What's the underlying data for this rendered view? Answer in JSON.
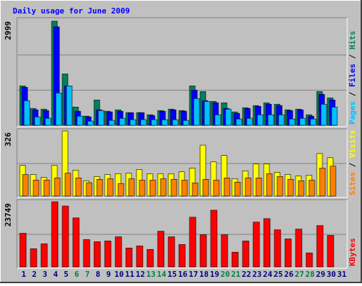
{
  "chart_data": [
    {
      "type": "bar",
      "title": "Daily usage for June 2009",
      "ylim": [
        0,
        2999
      ],
      "yticks": [
        2999
      ],
      "legend_separator": " / ",
      "series": [
        {
          "name": "Hits",
          "color": "#00805c",
          "values": [
            1120,
            480,
            460,
            2960,
            1460,
            520,
            260,
            720,
            400,
            440,
            360,
            360,
            300,
            420,
            460,
            420,
            1120,
            960,
            680,
            640,
            380,
            500,
            560,
            640,
            600,
            440,
            460,
            300,
            960,
            780,
            null
          ]
        },
        {
          "name": "Files",
          "color": "#0000ff",
          "values": [
            1080,
            440,
            420,
            2800,
            1120,
            400,
            240,
            440,
            380,
            400,
            360,
            360,
            280,
            400,
            440,
            400,
            1000,
            700,
            640,
            480,
            340,
            480,
            540,
            600,
            560,
            420,
            440,
            260,
            880,
            720,
            null
          ]
        },
        {
          "name": "Pages",
          "color": "#00c0ff",
          "values": [
            700,
            240,
            200,
            920,
            1120,
            260,
            120,
            420,
            140,
            200,
            160,
            160,
            160,
            160,
            160,
            140,
            760,
            680,
            300,
            460,
            180,
            200,
            300,
            300,
            300,
            180,
            200,
            180,
            600,
            520,
            null
          ]
        }
      ]
    },
    {
      "type": "bar",
      "ylim": [
        0,
        326
      ],
      "yticks": [
        326
      ],
      "legend_separator": " / ",
      "series": [
        {
          "name": "Visits",
          "color": "#ffff00",
          "values": [
            154,
            108,
            94,
            154,
            326,
            130,
            77,
            98,
            108,
            112,
            115,
            133,
            112,
            112,
            112,
            122,
            140,
            255,
            171,
            203,
            87,
            126,
            161,
            161,
            119,
            108,
            101,
            105,
            213,
            192,
            null
          ]
        },
        {
          "name": "Sites",
          "color": "#ff8000",
          "values": [
            108,
            80,
            80,
            91,
            115,
            91,
            67,
            84,
            87,
            63,
            87,
            80,
            80,
            87,
            84,
            80,
            66,
            84,
            80,
            91,
            70,
            91,
            91,
            112,
            98,
            84,
            77,
            80,
            140,
            150,
            null
          ]
        }
      ]
    },
    {
      "type": "bar",
      "ylim": [
        0,
        23749
      ],
      "yticks": [
        23749
      ],
      "categories": [
        1,
        2,
        3,
        4,
        5,
        6,
        7,
        8,
        9,
        10,
        11,
        12,
        13,
        14,
        15,
        16,
        17,
        18,
        19,
        20,
        21,
        22,
        23,
        24,
        25,
        26,
        27,
        28,
        29,
        30,
        31
      ],
      "category_colors": [
        "#000080",
        "#000080",
        "#000080",
        "#000080",
        "#000080",
        "#008040",
        "#008040",
        "#000080",
        "#000080",
        "#000080",
        "#000080",
        "#000080",
        "#008040",
        "#008040",
        "#000080",
        "#000080",
        "#000080",
        "#000080",
        "#000080",
        "#008040",
        "#008040",
        "#000080",
        "#000080",
        "#000080",
        "#000080",
        "#000080",
        "#008040",
        "#008040",
        "#000080",
        "#000080",
        "#000080"
      ],
      "series": [
        {
          "name": "KBytes",
          "color": "#ff0000",
          "values": [
            12250,
            6630,
            8420,
            23749,
            22190,
            17860,
            9950,
            9180,
            9440,
            10970,
            6890,
            7650,
            6380,
            13010,
            10970,
            8160,
            18110,
            11730,
            20660,
            11730,
            5360,
            9440,
            16330,
            17600,
            13520,
            10200,
            13780,
            5100,
            15050,
            11480,
            null
          ]
        }
      ]
    }
  ]
}
